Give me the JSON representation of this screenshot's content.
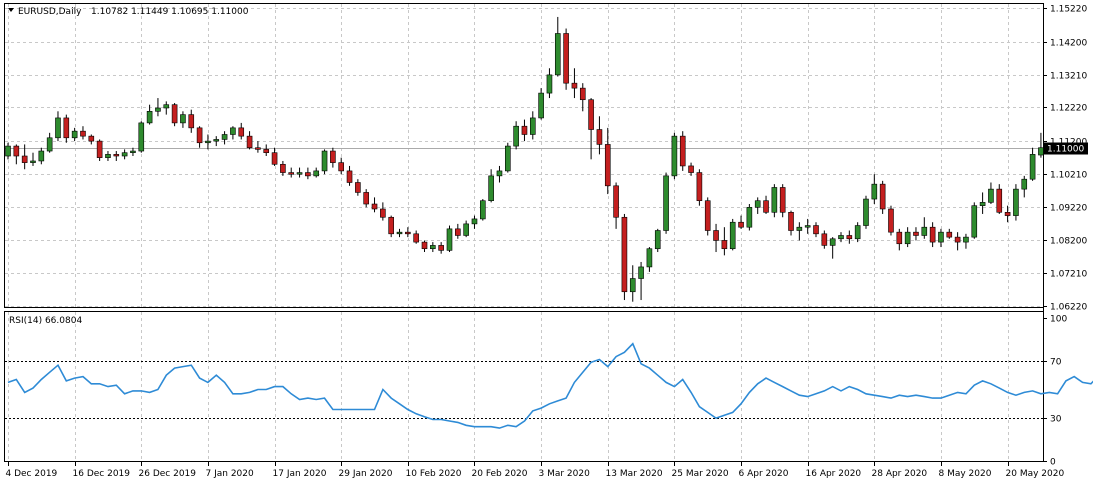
{
  "header": {
    "symbol": "EURUSD,Daily",
    "ohlc": "1.10782 1.11449 1.10695 1.11000"
  },
  "rsi": {
    "label": "RSI(14) 66.0804"
  },
  "price_tag": "1.11000",
  "colors": {
    "bull": "#2e8b2e",
    "bear": "#c41f1f",
    "rsi_line": "#2e8bd6",
    "grid": "#c8c8c8",
    "frame": "#000000"
  },
  "chart_data": [
    {
      "type": "candlestick",
      "title": "EURUSD,Daily",
      "ylim": [
        1.0622,
        1.1522
      ],
      "yticks": [
        "1.15220",
        "1.14200",
        "1.13210",
        "1.12220",
        "1.11200",
        "1.10210",
        "1.09220",
        "1.08200",
        "1.07210",
        "1.06220"
      ],
      "ytick_values": [
        1.1522,
        1.142,
        1.1321,
        1.1222,
        1.112,
        1.1021,
        1.0922,
        1.082,
        1.0721,
        1.0622
      ],
      "current_price": 1.11,
      "xticks": [
        "4 Dec 2019",
        "16 Dec 2019",
        "26 Dec 2019",
        "7 Jan 2020",
        "17 Jan 2020",
        "29 Jan 2020",
        "10 Feb 2020",
        "20 Feb 2020",
        "3 Mar 2020",
        "13 Mar 2020",
        "25 Mar 2020",
        "6 Apr 2020",
        "16 Apr 2020",
        "28 Apr 2020",
        "8 May 2020",
        "20 May 2020"
      ],
      "xtick_index": [
        0,
        8,
        16,
        24,
        32,
        40,
        48,
        56,
        64,
        72,
        80,
        88,
        96,
        104,
        112,
        120
      ],
      "candles": [
        [
          1.1075,
          1.1115,
          1.1065,
          1.1105
        ],
        [
          1.1105,
          1.111,
          1.105,
          1.1075
        ],
        [
          1.1075,
          1.111,
          1.1035,
          1.1055
        ],
        [
          1.1055,
          1.1085,
          1.1045,
          1.106
        ],
        [
          1.106,
          1.11,
          1.105,
          1.109
        ],
        [
          1.109,
          1.1145,
          1.1085,
          1.113
        ],
        [
          1.113,
          1.121,
          1.112,
          1.119
        ],
        [
          1.119,
          1.12,
          1.1115,
          1.113
        ],
        [
          1.113,
          1.116,
          1.112,
          1.115
        ],
        [
          1.115,
          1.1165,
          1.1125,
          1.1135
        ],
        [
          1.1135,
          1.114,
          1.111,
          1.112
        ],
        [
          1.112,
          1.1125,
          1.106,
          1.107
        ],
        [
          1.107,
          1.109,
          1.106,
          1.108
        ],
        [
          1.108,
          1.109,
          1.106,
          1.1075
        ],
        [
          1.1075,
          1.1095,
          1.1065,
          1.1085
        ],
        [
          1.1085,
          1.11,
          1.1075,
          1.109
        ],
        [
          1.109,
          1.118,
          1.1085,
          1.1175
        ],
        [
          1.1175,
          1.123,
          1.117,
          1.121
        ],
        [
          1.121,
          1.125,
          1.1195,
          1.122
        ],
        [
          1.122,
          1.124,
          1.12,
          1.123
        ],
        [
          1.123,
          1.1235,
          1.1165,
          1.1175
        ],
        [
          1.1175,
          1.121,
          1.116,
          1.12
        ],
        [
          1.12,
          1.1215,
          1.1145,
          1.116
        ],
        [
          1.116,
          1.1165,
          1.11,
          1.1115
        ],
        [
          1.1115,
          1.114,
          1.1095,
          1.112
        ],
        [
          1.112,
          1.1135,
          1.1105,
          1.1125
        ],
        [
          1.1125,
          1.115,
          1.111,
          1.114
        ],
        [
          1.114,
          1.1165,
          1.1125,
          1.116
        ],
        [
          1.116,
          1.1175,
          1.1125,
          1.1135
        ],
        [
          1.1135,
          1.115,
          1.1095,
          1.11
        ],
        [
          1.11,
          1.112,
          1.1085,
          1.1095
        ],
        [
          1.1095,
          1.111,
          1.1075,
          1.1085
        ],
        [
          1.1085,
          1.11,
          1.1045,
          1.105
        ],
        [
          1.105,
          1.106,
          1.1015,
          1.1025
        ],
        [
          1.1025,
          1.104,
          1.101,
          1.102
        ],
        [
          1.102,
          1.104,
          1.101,
          1.1025
        ],
        [
          1.1025,
          1.104,
          1.1005,
          1.1015
        ],
        [
          1.1015,
          1.104,
          1.101,
          1.103
        ],
        [
          1.103,
          1.1095,
          1.102,
          1.109
        ],
        [
          1.109,
          1.11,
          1.104,
          1.1055
        ],
        [
          1.1055,
          1.107,
          1.102,
          1.103
        ],
        [
          1.103,
          1.1045,
          1.0985,
          1.0995
        ],
        [
          1.0995,
          1.1005,
          1.0955,
          1.0965
        ],
        [
          1.0965,
          1.0975,
          1.092,
          1.093
        ],
        [
          1.093,
          1.095,
          1.0905,
          1.0915
        ],
        [
          1.0915,
          1.0935,
          1.088,
          1.089
        ],
        [
          1.089,
          1.0895,
          1.083,
          1.084
        ],
        [
          1.084,
          1.0855,
          1.083,
          1.0845
        ],
        [
          1.0845,
          1.086,
          1.083,
          1.084
        ],
        [
          1.084,
          1.085,
          1.081,
          1.0815
        ],
        [
          1.0815,
          1.082,
          1.0785,
          1.0795
        ],
        [
          1.0795,
          1.0815,
          1.0785,
          1.0805
        ],
        [
          1.0805,
          1.0815,
          1.078,
          1.079
        ],
        [
          1.079,
          1.0865,
          1.0785,
          1.0855
        ],
        [
          1.0855,
          1.087,
          1.0825,
          1.0835
        ],
        [
          1.0835,
          1.088,
          1.083,
          1.087
        ],
        [
          1.087,
          1.0895,
          1.0855,
          1.0885
        ],
        [
          1.0885,
          1.0945,
          1.088,
          1.094
        ],
        [
          1.094,
          1.1035,
          1.0935,
          1.1015
        ],
        [
          1.1015,
          1.1045,
          1.0995,
          1.103
        ],
        [
          1.103,
          1.1115,
          1.1025,
          1.1105
        ],
        [
          1.1105,
          1.118,
          1.1095,
          1.1165
        ],
        [
          1.1165,
          1.1185,
          1.112,
          1.114
        ],
        [
          1.114,
          1.121,
          1.1125,
          1.119
        ],
        [
          1.119,
          1.128,
          1.1185,
          1.1265
        ],
        [
          1.1265,
          1.134,
          1.125,
          1.132
        ],
        [
          1.132,
          1.1495,
          1.1315,
          1.1445
        ],
        [
          1.1445,
          1.146,
          1.1275,
          1.1295
        ],
        [
          1.1295,
          1.134,
          1.125,
          1.128
        ],
        [
          1.128,
          1.1295,
          1.121,
          1.1245
        ],
        [
          1.1245,
          1.125,
          1.1065,
          1.1155
        ],
        [
          1.1155,
          1.1195,
          1.108,
          1.111
        ],
        [
          1.111,
          1.116,
          1.096,
          1.0985
        ],
        [
          1.0985,
          1.0995,
          1.0855,
          1.089
        ],
        [
          1.089,
          1.09,
          1.064,
          1.0665
        ],
        [
          1.0665,
          1.0745,
          1.0635,
          1.0705
        ],
        [
          1.0705,
          1.0755,
          1.064,
          1.074
        ],
        [
          1.074,
          1.08,
          1.0725,
          1.0795
        ],
        [
          1.0795,
          1.0855,
          1.0785,
          1.085
        ],
        [
          1.085,
          1.1025,
          1.084,
          1.1015
        ],
        [
          1.1015,
          1.1145,
          1.1005,
          1.1135
        ],
        [
          1.1135,
          1.115,
          1.103,
          1.1045
        ],
        [
          1.1045,
          1.1055,
          1.1015,
          1.1025
        ],
        [
          1.1025,
          1.1035,
          1.0925,
          1.094
        ],
        [
          1.094,
          1.095,
          1.0835,
          1.085
        ],
        [
          1.085,
          1.087,
          1.0785,
          1.082
        ],
        [
          1.082,
          1.086,
          1.0775,
          1.0795
        ],
        [
          1.0795,
          1.0885,
          1.079,
          1.0875
        ],
        [
          1.0875,
          1.0895,
          1.0855,
          1.086
        ],
        [
          1.086,
          1.093,
          1.085,
          1.092
        ],
        [
          1.092,
          1.095,
          1.09,
          1.094
        ],
        [
          1.094,
          1.0955,
          1.09,
          1.0905
        ],
        [
          1.0905,
          1.099,
          1.089,
          1.098
        ],
        [
          1.098,
          1.099,
          1.089,
          1.0905
        ],
        [
          1.0905,
          1.091,
          1.0835,
          1.085
        ],
        [
          1.085,
          1.0875,
          1.082,
          1.086
        ],
        [
          1.086,
          1.0885,
          1.084,
          1.0865
        ],
        [
          1.0865,
          1.0875,
          1.083,
          1.084
        ],
        [
          1.084,
          1.085,
          1.0795,
          1.0805
        ],
        [
          1.0805,
          1.083,
          1.0765,
          1.0825
        ],
        [
          1.0825,
          1.0845,
          1.0815,
          1.0835
        ],
        [
          1.0835,
          1.085,
          1.081,
          1.0825
        ],
        [
          1.0825,
          1.0875,
          1.0815,
          1.0865
        ],
        [
          1.0865,
          1.0955,
          1.0855,
          1.0945
        ],
        [
          1.0945,
          1.102,
          1.093,
          1.099
        ],
        [
          1.099,
          1.1,
          1.09,
          1.0915
        ],
        [
          1.0915,
          1.0925,
          1.0835,
          1.0845
        ],
        [
          1.0845,
          1.0855,
          1.079,
          1.081
        ],
        [
          1.081,
          1.086,
          1.08,
          1.0845
        ],
        [
          1.0845,
          1.086,
          1.082,
          1.0835
        ],
        [
          1.0835,
          1.089,
          1.0825,
          1.086
        ],
        [
          1.086,
          1.0875,
          1.08,
          1.0815
        ],
        [
          1.0815,
          1.0855,
          1.08,
          1.0845
        ],
        [
          1.0845,
          1.0855,
          1.0825,
          1.083
        ],
        [
          1.083,
          1.0845,
          1.079,
          1.0815
        ],
        [
          1.0815,
          1.084,
          1.0795,
          1.083
        ],
        [
          1.083,
          1.0935,
          1.0825,
          1.0925
        ],
        [
          1.0925,
          1.0965,
          1.09,
          1.0935
        ],
        [
          1.0935,
          1.0995,
          1.093,
          1.0975
        ],
        [
          1.0975,
          1.099,
          1.09,
          1.0905
        ],
        [
          1.0905,
          1.0925,
          1.0875,
          1.0895
        ],
        [
          1.0895,
          1.099,
          1.088,
          1.0975
        ],
        [
          1.0975,
          1.1015,
          1.095,
          1.1005
        ],
        [
          1.1005,
          1.11,
          1.1,
          1.108
        ],
        [
          1.1078,
          1.1145,
          1.107,
          1.11
        ]
      ]
    },
    {
      "type": "line",
      "title": "RSI(14) 66.0804",
      "ylim": [
        0,
        100
      ],
      "yticks": [
        "100",
        "70",
        "30",
        "0"
      ],
      "ytick_values": [
        100,
        70,
        30,
        0
      ],
      "levels": [
        70,
        30
      ],
      "values": [
        55,
        57,
        48,
        51,
        57,
        62,
        67,
        56,
        58,
        59,
        54,
        54,
        52,
        53,
        47,
        49,
        49,
        48,
        50,
        60,
        65,
        66,
        67,
        58,
        55,
        60,
        55,
        47,
        47,
        48,
        50,
        50,
        52,
        52,
        47,
        43,
        44,
        43,
        44,
        36,
        36,
        36,
        36,
        36,
        36,
        50,
        44,
        40,
        36,
        33,
        31,
        29,
        29,
        28,
        27,
        25,
        24,
        24,
        24,
        23,
        25,
        24,
        28,
        35,
        37,
        40,
        42,
        44,
        55,
        62,
        69,
        71,
        66,
        73,
        76,
        82,
        68,
        65,
        60,
        55,
        52,
        57,
        48,
        38,
        34,
        30,
        32,
        34,
        40,
        48,
        54,
        58,
        55,
        52,
        49,
        46,
        45,
        47,
        49,
        52,
        49,
        52,
        50,
        47,
        46,
        45,
        44,
        46,
        45,
        46,
        45,
        44,
        44,
        46,
        48,
        47,
        53,
        56,
        54,
        51,
        48,
        46,
        48,
        49,
        47,
        48,
        47,
        56,
        59,
        55,
        54,
        60,
        62,
        66,
        66
      ]
    }
  ]
}
